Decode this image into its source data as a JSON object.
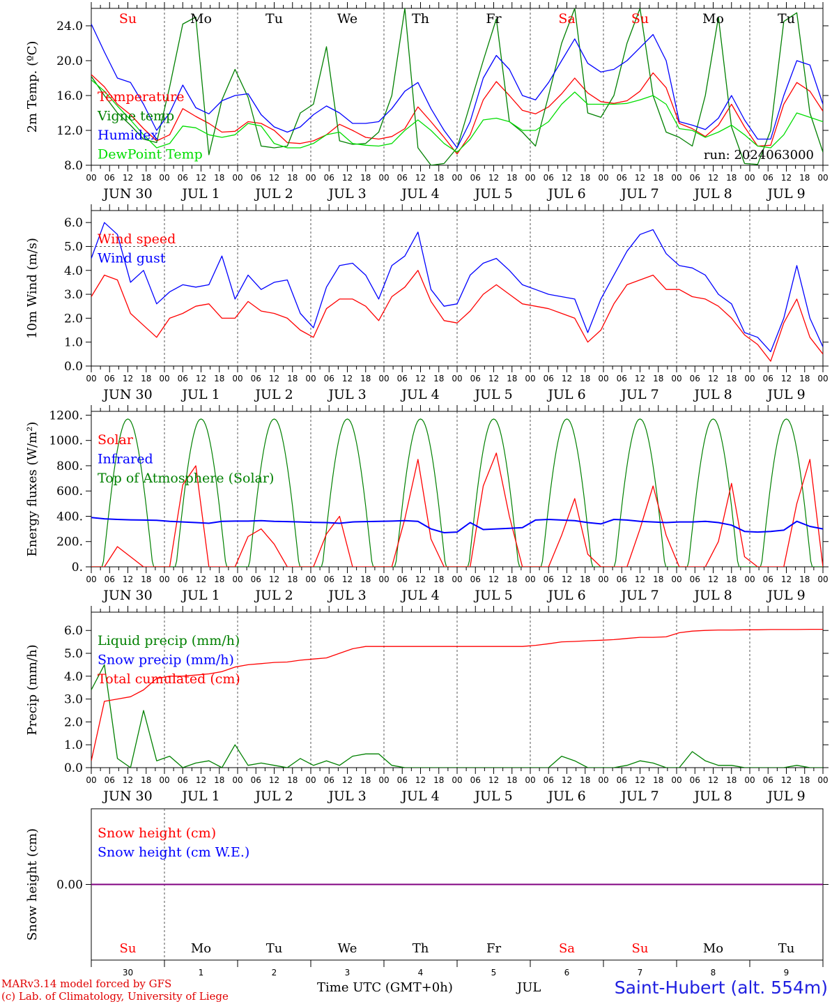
{
  "colors": {
    "red": "#ff0000",
    "green": "#008000",
    "lightgreen": "#00dd00",
    "blue": "#0000ff",
    "purple": "#800080",
    "grid": "#555555"
  },
  "time_axis": {
    "hour_ticks": [
      "00",
      "06",
      "12",
      "18"
    ],
    "day_labels": [
      "JUN 30",
      "JUL  1",
      "JUL  2",
      "JUL  3",
      "JUL  4",
      "JUL  5",
      "JUL  6",
      "JUL  7",
      "JUL  8",
      "JUL  9"
    ],
    "weekday_labels": [
      "Su",
      "Mo",
      "Tu",
      "We",
      "Th",
      "Fr",
      "Sa",
      "Su",
      "Mo",
      "Tu"
    ],
    "weekend_flags": [
      true,
      false,
      false,
      false,
      false,
      false,
      true,
      true,
      false,
      false
    ],
    "day_numbers": [
      "30",
      "1",
      "2",
      "3",
      "4",
      "5",
      "6",
      "7",
      "8",
      "9"
    ]
  },
  "chart_data": [
    {
      "type": "line",
      "ylabel": "2m Temp. (ºC)",
      "ylim": [
        8,
        26
      ],
      "yticks": [
        "8.0",
        "12.0",
        "16.0",
        "20.0",
        "24.0"
      ],
      "ytick_values": [
        8,
        12,
        16,
        20,
        24
      ],
      "annotation": "run: 2024063000",
      "x_hours_start": 0,
      "x_step_hours": 6,
      "series": [
        {
          "name": "Temperature",
          "color": "red",
          "values": [
            18.4,
            17.0,
            15.0,
            13.8,
            12.2,
            10.8,
            11.5,
            14.5,
            13.6,
            12.8,
            11.8,
            11.9,
            13.0,
            12.8,
            12.0,
            10.6,
            10.5,
            10.8,
            11.5,
            12.7,
            12.0,
            11.2,
            11.0,
            11.3,
            12.2,
            14.7,
            13.0,
            11.2,
            9.3,
            11.5,
            15.5,
            17.6,
            16.0,
            14.3,
            13.9,
            14.7,
            16.2,
            18.0,
            16.3,
            15.3,
            15.1,
            15.4,
            16.5,
            18.6,
            16.9,
            12.8,
            12.2,
            11.3,
            12.6,
            15.0,
            12.4,
            10.2,
            10.3,
            15.0,
            17.5,
            16.5,
            14.2
          ]
        },
        {
          "name": "Vigne temp",
          "color": "green",
          "values": [
            18.2,
            16.0,
            14.0,
            12.6,
            11.0,
            10.6,
            17.0,
            24.2,
            25.0,
            9.2,
            15.5,
            19.0,
            15.8,
            10.2,
            10.0,
            10.2,
            14.0,
            15.0,
            21.6,
            10.8,
            10.4,
            10.5,
            11.8,
            16.0,
            26.0,
            10.0,
            8.0,
            8.2,
            10.0,
            15.0,
            20.0,
            24.8,
            13.0,
            11.8,
            10.2,
            16.0,
            22.0,
            26.0,
            14.0,
            13.5,
            16.0,
            22.0,
            26.0,
            16.0,
            11.8,
            11.2,
            10.2,
            16.0,
            25.0,
            12.4,
            8.2,
            8.1,
            12.0,
            24.5,
            25.5,
            14.0,
            9.5
          ]
        },
        {
          "name": "Humidex",
          "color": "blue",
          "values": [
            24.2,
            21.0,
            18.0,
            17.5,
            15.0,
            12.0,
            14.0,
            17.2,
            14.6,
            13.9,
            15.4,
            16.0,
            16.2,
            13.8,
            12.4,
            11.8,
            12.4,
            13.8,
            14.8,
            14.0,
            12.8,
            12.8,
            13.0,
            14.5,
            16.5,
            17.5,
            14.5,
            12.0,
            10.0,
            13.0,
            18.0,
            20.6,
            19.0,
            16.0,
            15.5,
            17.5,
            20.0,
            22.5,
            19.7,
            18.7,
            19.0,
            20.0,
            21.5,
            23.0,
            20.0,
            13.0,
            12.6,
            12.1,
            13.4,
            16.0,
            13.2,
            11.0,
            11.0,
            16.0,
            20.0,
            19.5,
            15.0
          ]
        },
        {
          "name": "DewPoint Temp",
          "color": "lightgreen",
          "values": [
            17.8,
            16.5,
            14.8,
            13.2,
            11.5,
            10.0,
            10.5,
            12.5,
            12.3,
            11.5,
            11.2,
            11.5,
            12.8,
            12.5,
            10.5,
            10.0,
            10.0,
            10.5,
            11.5,
            11.8,
            10.5,
            10.3,
            10.2,
            10.5,
            12.0,
            13.2,
            12.0,
            10.5,
            9.5,
            11.0,
            13.2,
            13.4,
            13.0,
            12.0,
            12.0,
            13.0,
            15.0,
            16.4,
            15.0,
            15.0,
            15.0,
            15.1,
            15.5,
            16.0,
            15.0,
            12.2,
            12.0,
            11.2,
            11.8,
            12.6,
            11.5,
            10.2,
            10.0,
            11.5,
            14.0,
            13.5,
            13.0
          ]
        }
      ],
      "legend": [
        "Temperature",
        "Vigne temp",
        "Humidex",
        "DewPoint Temp"
      ]
    },
    {
      "type": "line",
      "ylabel": "10m Wind (m/s)",
      "ylim": [
        0,
        6.5
      ],
      "yticks": [
        "0.0",
        "1.0",
        "2.0",
        "3.0",
        "4.0",
        "5.0",
        "6.0"
      ],
      "ytick_values": [
        0,
        1,
        2,
        3,
        4,
        5,
        6
      ],
      "reference_line": 5.0,
      "x_hours_start": 0,
      "x_step_hours": 6,
      "series": [
        {
          "name": "Wind speed",
          "color": "red",
          "values": [
            2.9,
            3.8,
            3.6,
            2.2,
            1.7,
            1.2,
            2.0,
            2.2,
            2.5,
            2.6,
            2.0,
            2.0,
            2.7,
            2.3,
            2.2,
            2.0,
            1.5,
            1.2,
            2.4,
            2.8,
            2.8,
            2.5,
            1.9,
            2.9,
            3.3,
            4.0,
            2.7,
            1.9,
            1.8,
            2.3,
            3.0,
            3.4,
            3.0,
            2.6,
            2.5,
            2.4,
            2.2,
            2.0,
            1.0,
            1.5,
            2.6,
            3.4,
            3.6,
            3.8,
            3.2,
            3.2,
            2.9,
            2.8,
            2.5,
            2.0,
            1.3,
            0.9,
            0.2,
            1.8,
            2.8,
            1.2,
            0.5
          ]
        },
        {
          "name": "Wind gust",
          "color": "blue",
          "values": [
            4.5,
            6.0,
            5.5,
            3.5,
            4.0,
            2.6,
            3.1,
            3.4,
            3.3,
            3.4,
            4.6,
            2.8,
            3.8,
            3.2,
            3.5,
            3.6,
            2.2,
            1.6,
            3.3,
            4.2,
            4.3,
            3.8,
            2.8,
            4.2,
            4.6,
            5.6,
            3.2,
            2.5,
            2.6,
            3.8,
            4.3,
            4.5,
            4.0,
            3.4,
            3.2,
            3.0,
            2.9,
            2.8,
            1.4,
            2.8,
            3.8,
            4.8,
            5.5,
            5.7,
            4.7,
            4.2,
            4.1,
            3.8,
            3.0,
            2.6,
            1.4,
            1.2,
            0.6,
            2.0,
            4.2,
            2.0,
            0.8
          ]
        }
      ],
      "legend": [
        "Wind speed",
        "Wind gust"
      ]
    },
    {
      "type": "line",
      "ylabel": "Energy fluxes (W/m²)",
      "ylim": [
        0,
        1230
      ],
      "yticks": [
        "0.",
        "200.",
        "400.",
        "600.",
        "800.",
        "1000.",
        "1200."
      ],
      "ytick_values": [
        0,
        200,
        400,
        600,
        800,
        1000,
        1200
      ],
      "toa_peak": 1170,
      "x_hours_start": 0,
      "x_step_hours": 6,
      "series": [
        {
          "name": "Solar",
          "color": "red",
          "values": [
            0,
            0,
            160,
            80,
            0,
            0,
            0,
            650,
            800,
            0,
            0,
            0,
            240,
            300,
            180,
            0,
            0,
            0,
            260,
            400,
            0,
            0,
            0,
            0,
            380,
            850,
            220,
            0,
            0,
            0,
            640,
            900,
            400,
            0,
            0,
            0,
            250,
            540,
            100,
            0,
            0,
            0,
            300,
            640,
            250,
            0,
            0,
            0,
            200,
            660,
            80,
            0,
            0,
            0,
            500,
            850,
            0
          ]
        },
        {
          "name": "Infrared",
          "color": "blue",
          "values": [
            390,
            380,
            375,
            372,
            370,
            368,
            360,
            355,
            350,
            345,
            360,
            362,
            362,
            365,
            360,
            358,
            355,
            352,
            350,
            345,
            355,
            358,
            360,
            362,
            365,
            360,
            300,
            270,
            275,
            350,
            295,
            300,
            305,
            310,
            370,
            375,
            370,
            365,
            350,
            340,
            375,
            370,
            360,
            355,
            350,
            355,
            355,
            360,
            350,
            330,
            280,
            275,
            280,
            290,
            360,
            320,
            300
          ]
        },
        {
          "name": "Top of Atmosphere (Solar)",
          "color": "green",
          "values": []
        }
      ],
      "legend": [
        "Solar",
        "Infrared",
        "Top of Atmosphere (Solar)"
      ]
    },
    {
      "type": "line",
      "ylabel": "Precip (mm/h)",
      "ylim": [
        0,
        6.8
      ],
      "yticks": [
        "0.0",
        "1.0",
        "2.0",
        "3.0",
        "4.0",
        "5.0",
        "6.0"
      ],
      "ytick_values": [
        0,
        1,
        2,
        3,
        4,
        5,
        6
      ],
      "x_hours_start": 0,
      "x_step_hours": 6,
      "series": [
        {
          "name": "Liquid precip (mm/h)",
          "color": "green",
          "values": [
            3.4,
            4.5,
            0.4,
            0.0,
            2.5,
            0.3,
            0.5,
            0.0,
            0.2,
            0.3,
            0.0,
            1.0,
            0.1,
            0.2,
            0.1,
            0.0,
            0.4,
            0.1,
            0.3,
            0.1,
            0.5,
            0.6,
            0.6,
            0.1,
            0.0,
            0.0,
            0.0,
            0.0,
            0.0,
            0.0,
            0.0,
            0.0,
            0.0,
            0.0,
            0.0,
            0.0,
            0.5,
            0.3,
            0.0,
            0.0,
            0.0,
            0.1,
            0.3,
            0.2,
            0.0,
            0.0,
            0.7,
            0.3,
            0.1,
            0.1,
            0.0,
            0.0,
            0.0,
            0.0,
            0.1,
            0.0,
            0.0
          ]
        },
        {
          "name": "Snow precip (mm/h)",
          "color": "blue",
          "values": []
        },
        {
          "name": "Total cumulated (cm)",
          "color": "red",
          "values": [
            0.3,
            2.9,
            3.0,
            3.1,
            3.4,
            3.9,
            4.0,
            4.0,
            4.05,
            4.1,
            4.2,
            4.4,
            4.5,
            4.55,
            4.6,
            4.62,
            4.7,
            4.75,
            4.8,
            5.0,
            5.2,
            5.3,
            5.3,
            5.3,
            5.3,
            5.3,
            5.3,
            5.3,
            5.3,
            5.3,
            5.3,
            5.3,
            5.3,
            5.3,
            5.35,
            5.42,
            5.5,
            5.52,
            5.55,
            5.57,
            5.6,
            5.65,
            5.7,
            5.7,
            5.72,
            5.9,
            5.97,
            6.0,
            6.02,
            6.02,
            6.03,
            6.03,
            6.04,
            6.04,
            6.04,
            6.05,
            6.05
          ]
        }
      ],
      "legend": [
        "Liquid precip (mm/h)",
        "Snow precip (mm/h)",
        "Total cumulated (cm)"
      ]
    },
    {
      "type": "line",
      "ylabel": "Snow height (cm)",
      "ylim": [
        -1,
        1
      ],
      "yticks": [
        "0.00"
      ],
      "ytick_values": [
        0
      ],
      "series": [
        {
          "name": "Snow height (cm)",
          "color": "red",
          "values": [
            0,
            0
          ]
        },
        {
          "name": "Snow height (cm W.E.)",
          "color": "blue",
          "values": [
            0,
            0
          ]
        }
      ],
      "legend": [
        "Snow height (cm)",
        "Snow height (cm W.E.)"
      ]
    }
  ],
  "footer": {
    "model_line": "MARv3.14 model forced by GFS",
    "credit_line": "(c) Lab. of Climatology, University of Liege",
    "time_label": "Time UTC (GMT+0h)",
    "month_label": "JUL",
    "station": "Saint-Hubert (alt. 554m)"
  }
}
